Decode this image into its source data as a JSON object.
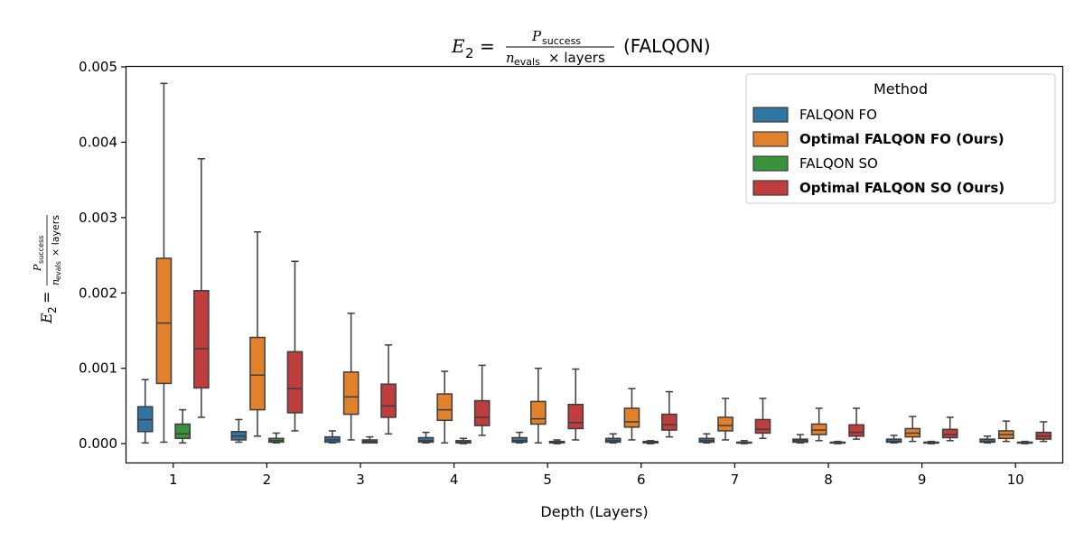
{
  "chart_data": {
    "type": "box",
    "title_math": {
      "lhs_var": "E",
      "lhs_sub": "2",
      "eq": "=",
      "num_var": "P",
      "num_sub": "success",
      "den_var": "n",
      "den_sub": "evals",
      "den_rest": "× layers"
    },
    "title_suffix": "(FALQON)",
    "xlabel": "Depth (Layers)",
    "categories": [
      "1",
      "2",
      "3",
      "4",
      "5",
      "6",
      "7",
      "8",
      "9",
      "10"
    ],
    "ylim": [
      -0.00025,
      0.005
    ],
    "yticks": [
      "0.000",
      "0.001",
      "0.002",
      "0.003",
      "0.004",
      "0.005"
    ],
    "ytick_values": [
      0,
      0.001,
      0.002,
      0.003,
      0.004,
      0.005
    ],
    "grid": false,
    "legend": {
      "title": "Method",
      "position": "top-right"
    },
    "series": [
      {
        "name": "FALQON FO",
        "bold": false,
        "color": "#3274a1",
        "boxes": [
          {
            "whislo": 1e-05,
            "q1": 0.00016,
            "med": 0.00032,
            "q3": 0.00049,
            "whishi": 0.00085
          },
          {
            "whislo": 2e-05,
            "q1": 5e-05,
            "med": 0.0001,
            "q3": 0.00016,
            "whishi": 0.00032
          },
          {
            "whislo": 1e-05,
            "q1": 2e-05,
            "med": 5e-05,
            "q3": 9e-05,
            "whishi": 0.00017
          },
          {
            "whislo": 1e-05,
            "q1": 2e-05,
            "med": 4e-05,
            "q3": 8e-05,
            "whishi": 0.00015
          },
          {
            "whislo": 1e-05,
            "q1": 2e-05,
            "med": 4e-05,
            "q3": 8e-05,
            "whishi": 0.00015
          },
          {
            "whislo": 1e-05,
            "q1": 2e-05,
            "med": 4e-05,
            "q3": 7e-05,
            "whishi": 0.00013
          },
          {
            "whislo": 1e-05,
            "q1": 2e-05,
            "med": 4e-05,
            "q3": 7e-05,
            "whishi": 0.00013
          },
          {
            "whislo": 1e-05,
            "q1": 2e-05,
            "med": 4e-05,
            "q3": 6e-05,
            "whishi": 0.00012
          },
          {
            "whislo": 1e-05,
            "q1": 2e-05,
            "med": 3e-05,
            "q3": 6e-05,
            "whishi": 0.00011
          },
          {
            "whislo": 1e-05,
            "q1": 2e-05,
            "med": 3e-05,
            "q3": 6e-05,
            "whishi": 0.0001
          }
        ]
      },
      {
        "name": "Optimal FALQON FO (Ours)",
        "bold": true,
        "color": "#e1812c",
        "boxes": [
          {
            "whislo": 2e-05,
            "q1": 0.0008,
            "med": 0.0016,
            "q3": 0.00246,
            "whishi": 0.00478
          },
          {
            "whislo": 0.0001,
            "q1": 0.00045,
            "med": 0.00091,
            "q3": 0.00141,
            "whishi": 0.00281
          },
          {
            "whislo": 5e-05,
            "q1": 0.00039,
            "med": 0.00062,
            "q3": 0.00095,
            "whishi": 0.00173
          },
          {
            "whislo": 1e-05,
            "q1": 0.00031,
            "med": 0.00045,
            "q3": 0.00066,
            "whishi": 0.00096
          },
          {
            "whislo": 1e-05,
            "q1": 0.00026,
            "med": 0.00033,
            "q3": 0.00056,
            "whishi": 0.001
          },
          {
            "whislo": 5e-05,
            "q1": 0.00022,
            "med": 0.00029,
            "q3": 0.00047,
            "whishi": 0.00073
          },
          {
            "whislo": 5e-05,
            "q1": 0.00017,
            "med": 0.00024,
            "q3": 0.00035,
            "whishi": 0.0006
          },
          {
            "whislo": 4e-05,
            "q1": 0.00012,
            "med": 0.00018,
            "q3": 0.00026,
            "whishi": 0.00047
          },
          {
            "whislo": 3e-05,
            "q1": 9e-05,
            "med": 0.00014,
            "q3": 0.0002,
            "whishi": 0.00036
          },
          {
            "whislo": 3e-05,
            "q1": 7e-05,
            "med": 0.00012,
            "q3": 0.00017,
            "whishi": 0.0003
          }
        ]
      },
      {
        "name": "FALQON SO",
        "bold": false,
        "color": "#3a923a",
        "boxes": [
          {
            "whislo": 1e-05,
            "q1": 7e-05,
            "med": 0.00013,
            "q3": 0.00026,
            "whishi": 0.00045
          },
          {
            "whislo": 1e-05,
            "q1": 2e-05,
            "med": 4e-05,
            "q3": 7e-05,
            "whishi": 0.00014
          },
          {
            "whislo": 1e-05,
            "q1": 1e-05,
            "med": 3e-05,
            "q3": 5e-05,
            "whishi": 9e-05
          },
          {
            "whislo": 0.0,
            "q1": 1e-05,
            "med": 2e-05,
            "q3": 4e-05,
            "whishi": 7e-05
          },
          {
            "whislo": 0.0,
            "q1": 1e-05,
            "med": 2e-05,
            "q3": 3e-05,
            "whishi": 5e-05
          },
          {
            "whislo": 0.0,
            "q1": 1e-05,
            "med": 2e-05,
            "q3": 3e-05,
            "whishi": 4e-05
          },
          {
            "whislo": 0.0,
            "q1": 1e-05,
            "med": 1e-05,
            "q3": 2e-05,
            "whishi": 4e-05
          },
          {
            "whislo": 0.0,
            "q1": 1e-05,
            "med": 1e-05,
            "q3": 2e-05,
            "whishi": 3e-05
          },
          {
            "whislo": 0.0,
            "q1": 1e-05,
            "med": 1e-05,
            "q3": 2e-05,
            "whishi": 3e-05
          },
          {
            "whislo": 0.0,
            "q1": 1e-05,
            "med": 1e-05,
            "q3": 2e-05,
            "whishi": 3e-05
          }
        ]
      },
      {
        "name": "Optimal FALQON SO (Ours)",
        "bold": true,
        "color": "#c03d3e",
        "boxes": [
          {
            "whislo": 0.00035,
            "q1": 0.00074,
            "med": 0.00126,
            "q3": 0.00203,
            "whishi": 0.00378
          },
          {
            "whislo": 0.00017,
            "q1": 0.00041,
            "med": 0.00073,
            "q3": 0.00122,
            "whishi": 0.00242
          },
          {
            "whislo": 0.00013,
            "q1": 0.00035,
            "med": 0.0005,
            "q3": 0.00079,
            "whishi": 0.00131
          },
          {
            "whislo": 0.00011,
            "q1": 0.00024,
            "med": 0.00035,
            "q3": 0.00057,
            "whishi": 0.00104
          },
          {
            "whislo": 5e-05,
            "q1": 0.0002,
            "med": 0.00028,
            "q3": 0.00052,
            "whishi": 0.00099
          },
          {
            "whislo": 9e-05,
            "q1": 0.00018,
            "med": 0.00025,
            "q3": 0.00039,
            "whishi": 0.00069
          },
          {
            "whislo": 7e-05,
            "q1": 0.00014,
            "med": 0.00019,
            "q3": 0.00032,
            "whishi": 0.0006
          },
          {
            "whislo": 6e-05,
            "q1": 0.0001,
            "med": 0.00015,
            "q3": 0.00025,
            "whishi": 0.00047
          },
          {
            "whislo": 4e-05,
            "q1": 8e-05,
            "med": 0.00012,
            "q3": 0.00019,
            "whishi": 0.00035
          },
          {
            "whislo": 3e-05,
            "q1": 6e-05,
            "med": 0.0001,
            "q3": 0.00015,
            "whishi": 0.00029
          }
        ]
      }
    ]
  }
}
